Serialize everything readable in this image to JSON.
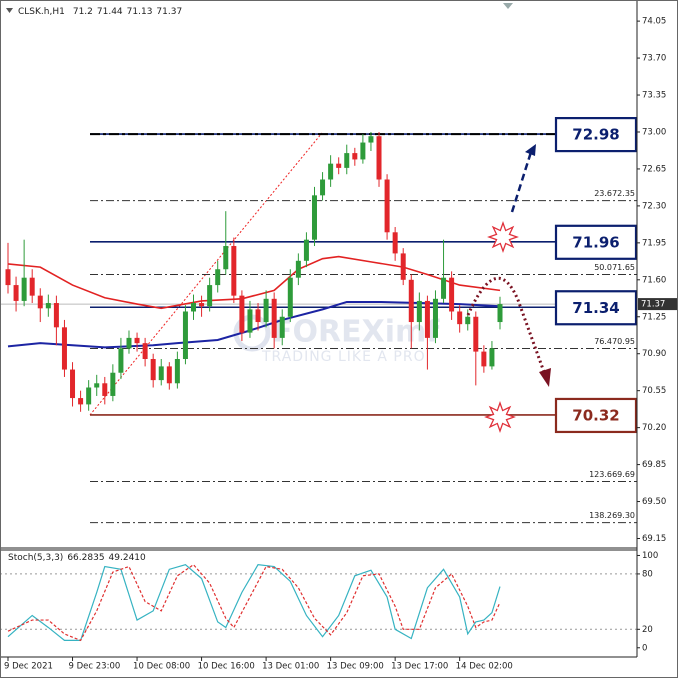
{
  "chart_data": [
    {
      "type": "candlestick",
      "title": "CLSK.h,H1",
      "open": [
        71.7,
        71.55,
        71.4,
        71.62,
        71.45,
        71.33,
        71.38,
        71.15,
        70.75,
        70.48,
        70.42,
        70.58,
        70.62,
        70.5,
        70.72,
        70.95,
        71.05,
        71.0,
        70.85,
        70.65,
        70.78,
        70.62,
        70.85,
        71.3,
        71.38,
        71.35,
        71.55,
        71.7,
        71.92,
        71.45,
        71.1,
        71.32,
        71.2,
        71.42,
        71.05,
        71.25,
        71.62,
        71.78,
        71.98,
        72.4,
        72.55,
        72.7,
        72.66,
        72.8,
        72.74,
        72.9,
        72.96,
        72.55,
        72.05,
        71.85,
        71.6,
        71.2,
        71.4,
        71.05,
        71.42,
        71.62,
        71.3,
        71.18,
        71.25,
        70.92,
        70.78,
        71.2
      ],
      "high": [
        71.95,
        71.63,
        71.98,
        71.7,
        71.52,
        71.46,
        71.45,
        71.22,
        70.82,
        70.55,
        70.65,
        70.7,
        70.68,
        70.8,
        71.05,
        71.12,
        71.1,
        71.05,
        70.9,
        70.85,
        70.82,
        70.92,
        71.36,
        71.46,
        71.45,
        71.62,
        71.78,
        72.25,
        72.0,
        71.5,
        71.4,
        71.38,
        71.5,
        71.48,
        71.32,
        71.7,
        71.85,
        72.05,
        72.48,
        72.62,
        72.78,
        72.76,
        72.88,
        72.85,
        72.98,
        73.0,
        73.0,
        72.6,
        72.1,
        71.9,
        71.65,
        71.48,
        71.45,
        71.5,
        71.98,
        71.68,
        71.36,
        71.32,
        71.3,
        70.98,
        71.02,
        71.44
      ],
      "low": [
        71.47,
        71.3,
        71.35,
        71.38,
        71.2,
        71.25,
        70.98,
        70.68,
        70.4,
        70.35,
        70.36,
        70.5,
        70.42,
        70.45,
        70.66,
        70.9,
        70.92,
        70.78,
        70.58,
        70.6,
        70.56,
        70.57,
        70.8,
        71.22,
        71.25,
        71.3,
        71.48,
        71.65,
        71.38,
        71.02,
        71.05,
        71.12,
        71.15,
        70.95,
        70.98,
        71.2,
        71.55,
        71.72,
        71.92,
        72.35,
        72.48,
        72.6,
        72.6,
        72.68,
        72.7,
        72.82,
        72.48,
        71.98,
        71.78,
        71.55,
        70.95,
        71.12,
        70.75,
        71.0,
        71.38,
        71.22,
        71.1,
        71.12,
        70.6,
        70.72,
        70.75,
        71.13
      ],
      "close": [
        71.55,
        71.4,
        71.62,
        71.45,
        71.33,
        71.38,
        71.15,
        70.75,
        70.48,
        70.42,
        70.58,
        70.62,
        70.5,
        70.72,
        70.95,
        71.05,
        71.0,
        70.85,
        70.65,
        70.78,
        70.62,
        70.85,
        71.3,
        71.38,
        71.35,
        71.55,
        71.7,
        71.92,
        71.45,
        71.1,
        71.32,
        71.2,
        71.42,
        71.05,
        71.25,
        71.62,
        71.78,
        71.98,
        72.4,
        72.55,
        72.7,
        72.66,
        72.8,
        72.74,
        72.9,
        72.96,
        72.55,
        72.05,
        71.85,
        71.6,
        71.2,
        71.4,
        71.05,
        71.42,
        71.62,
        71.3,
        71.18,
        71.25,
        70.92,
        70.78,
        70.95,
        71.37
      ],
      "colors": {
        "up": "#2e9b3a",
        "down": "#e2262b"
      },
      "series": [
        {
          "color": "#e22222",
          "x": [
            0,
            4,
            8,
            12,
            16,
            19,
            24,
            29,
            33,
            36,
            39,
            41,
            45,
            49,
            52,
            56,
            61
          ],
          "values": [
            71.75,
            71.72,
            71.55,
            71.43,
            71.37,
            71.33,
            71.4,
            71.42,
            71.5,
            71.7,
            71.8,
            71.82,
            71.77,
            71.72,
            71.65,
            71.55,
            71.5
          ]
        },
        {
          "color": "#1c24a3",
          "x": [
            0,
            4,
            8,
            12,
            18,
            21,
            26,
            30,
            34,
            39,
            42,
            46,
            51,
            56,
            61
          ],
          "values": [
            70.97,
            71.0,
            70.98,
            70.96,
            70.98,
            71.0,
            71.03,
            71.12,
            71.22,
            71.32,
            71.39,
            71.39,
            71.38,
            71.37,
            71.35
          ]
        }
      ],
      "ylim": [
        69.06,
        74.25
      ],
      "yticks": [
        74.05,
        {
          "value": 73.7,
          "label": "73.70"
        },
        73.35,
        {
          "value": 73,
          "label": "73.00"
        },
        72.65,
        {
          "value": 72.3,
          "label": "72.30"
        },
        71.95,
        {
          "value": 71.6,
          "label": "71.60"
        },
        71.25,
        {
          "value": 70.9,
          "label": "70.90"
        },
        70.55,
        {
          "value": 70.2,
          "label": "70.20"
        },
        69.85,
        {
          "value": 69.5,
          "label": "69.50"
        },
        69.15
      ],
      "x_labels": {
        "x": [
          0,
          8,
          16,
          24,
          32,
          40,
          48,
          56
        ],
        "labels": [
          "9 Dec 2021",
          "9 Dec 23:00",
          "10 Dec 08:00",
          "10 Dec 16:00",
          "13 Dec 01:00",
          "13 Dec 09:00",
          "13 Dec 17:00",
          "14 Dec 02:00"
        ]
      },
      "fib_levels": [
        {
          "level": 23.6,
          "price": 72.35
        },
        {
          "level": {
            "value": 50,
            "label": "50.0"
          },
          "price": 71.65
        },
        {
          "level": 76.4,
          "price": 70.95
        },
        {
          "level": 123.6,
          "price": 69.69
        },
        {
          "level": 138.2,
          "price": {
            "value": 69.3,
            "label": "69.30"
          }
        }
      ],
      "levels": [
        {
          "value": 72.98,
          "color": "#0b1f6e"
        },
        {
          "value": 71.96,
          "color": "#0b1f6e"
        },
        {
          "value": 71.34,
          "color": "#0b1f6e"
        },
        {
          "value": 70.32,
          "color": "#8b2a1e"
        }
      ],
      "watermark": {
        "brand": "FOREXimf",
        "tagline": "TRADING LIKE A PRO"
      }
    },
    {
      "type": "line",
      "title": "Stoch(5,3,3)",
      "series": [
        {
          "color": "#36b3c2",
          "x": [
            0,
            3,
            5,
            7,
            9,
            11,
            12,
            14,
            16,
            18,
            20,
            22,
            24,
            26,
            27,
            29,
            31,
            33,
            35,
            37,
            39,
            41,
            43,
            45,
            47,
            48,
            50,
            52,
            54,
            56,
            57,
            58,
            59,
            60,
            61
          ],
          "values": [
            12,
            35,
            22,
            8,
            8,
            60,
            88,
            85,
            30,
            40,
            85,
            90,
            75,
            28,
            22,
            60,
            90,
            88,
            72,
            35,
            12,
            35,
            78,
            84,
            55,
            20,
            10,
            65,
            85,
            55,
            15,
            28,
            30,
            38,
            66.2835
          ]
        },
        {
          "color": "#e03030",
          "dash": true,
          "x": [
            0,
            3,
            5,
            7,
            9,
            11,
            13,
            15,
            17,
            19,
            21,
            23,
            25,
            27,
            28,
            30,
            32,
            34,
            36,
            38,
            40,
            42,
            44,
            46,
            48,
            49,
            51,
            53,
            55,
            57,
            58,
            59,
            60,
            61
          ],
          "values": [
            18,
            30,
            30,
            15,
            8,
            40,
            82,
            88,
            50,
            40,
            78,
            90,
            70,
            32,
            22,
            55,
            88,
            85,
            65,
            32,
            14,
            38,
            78,
            80,
            45,
            20,
            20,
            65,
            80,
            45,
            22,
            28,
            30,
            49.241
          ],
          "value_labels": [
            null,
            null,
            null,
            null,
            null,
            null,
            null,
            null,
            null,
            null,
            null,
            null,
            null,
            null,
            null,
            null,
            null,
            null,
            null,
            null,
            null,
            null,
            null,
            null,
            null,
            null,
            null,
            null,
            null,
            null,
            null,
            null,
            null,
            "49.2410"
          ]
        }
      ],
      "ylim": [
        -10,
        107
      ],
      "yticks": [
        100,
        80,
        20,
        0
      ],
      "grid": true
    }
  ]
}
